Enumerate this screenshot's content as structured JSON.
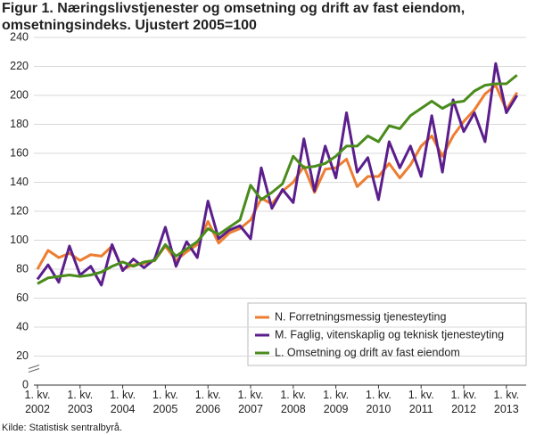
{
  "chart_data": {
    "type": "line",
    "title": "Figur 1. Næringslivstjenester og omsetning og drift av fast eiendom, omsetningsindeks. Ujustert 2005=100",
    "source": "Kilde: Statistisk sentralbyrå.",
    "categories": [
      "1. kv. 2002",
      null,
      null,
      null,
      "1. kv. 2003",
      null,
      null,
      null,
      "1. kv. 2004",
      null,
      null,
      null,
      "1. kv. 2005",
      null,
      null,
      null,
      "1. kv. 2006",
      null,
      null,
      null,
      "1. kv. 2007",
      null,
      null,
      null,
      "1. kv. 2008",
      null,
      null,
      null,
      "1. kv. 2009",
      null,
      null,
      null,
      "1. kv. 2010",
      null,
      null,
      null,
      "1. kv. 2011",
      null,
      null,
      null,
      "1. kv. 2012",
      null,
      null,
      null,
      "1. kv. 2013",
      null
    ],
    "series": [
      {
        "name": "N. Forretningsmessig tjenesteyting",
        "color": "#ed7d31",
        "values": [
          80,
          93,
          88,
          91,
          86,
          90,
          89,
          96,
          80,
          83,
          84,
          86,
          96,
          86,
          92,
          97,
          113,
          98,
          105,
          108,
          114,
          129,
          125,
          134,
          140,
          151,
          133,
          149,
          150,
          156,
          137,
          144,
          144,
          153,
          143,
          152,
          165,
          172,
          158,
          172,
          182,
          190,
          201,
          207,
          190,
          202
        ]
      },
      {
        "name": "M. Faglig, vitenskaplig og teknisk tjenesteyting",
        "color": "#5b1e8c",
        "values": [
          73,
          83,
          71,
          96,
          76,
          82,
          69,
          97,
          79,
          87,
          81,
          87,
          109,
          82,
          99,
          88,
          127,
          101,
          107,
          110,
          101,
          150,
          122,
          135,
          126,
          170,
          134,
          165,
          143,
          188,
          147,
          157,
          128,
          168,
          150,
          165,
          144,
          186,
          147,
          197,
          175,
          188,
          168,
          222,
          188,
          200
        ]
      },
      {
        "name": "L. Omsetning og drift av fast eiendom",
        "color": "#4a8c1c",
        "values": [
          70,
          74,
          75,
          76,
          75,
          76,
          78,
          82,
          85,
          82,
          85,
          86,
          97,
          89,
          94,
          99,
          108,
          104,
          109,
          114,
          138,
          128,
          133,
          139,
          158,
          150,
          151,
          153,
          158,
          165,
          165,
          172,
          168,
          179,
          177,
          186,
          191,
          196,
          191,
          195,
          196,
          203,
          207,
          208,
          208,
          214
        ]
      }
    ],
    "ylim": [
      0,
      240
    ],
    "yticks": [
      0,
      20,
      40,
      60,
      80,
      100,
      120,
      140,
      160,
      180,
      200,
      220,
      240
    ],
    "grid": true
  }
}
